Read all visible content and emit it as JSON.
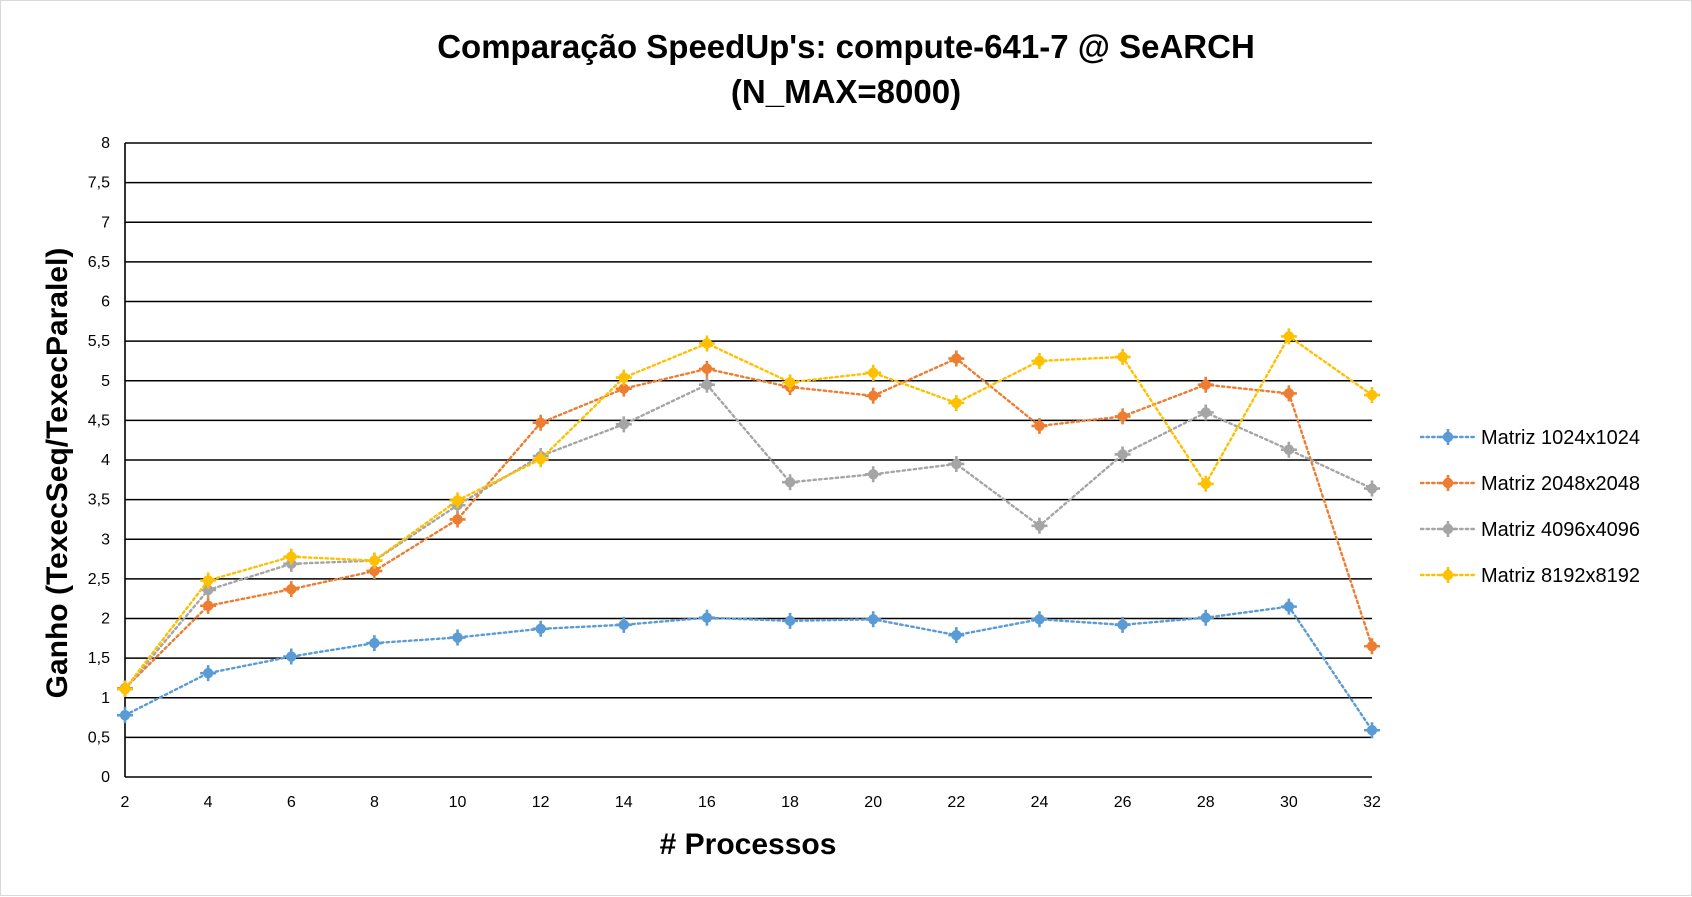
{
  "chart_data": {
    "type": "line",
    "title": "Comparação SpeedUp's: compute-641-7 @ SeARCH",
    "subtitle": "(N_MAX=8000)",
    "xlabel": "# Processos",
    "ylabel": "Ganho (TexecSeq/TexecParalel)",
    "x": [
      2,
      4,
      6,
      8,
      10,
      12,
      14,
      16,
      18,
      20,
      22,
      24,
      26,
      28,
      30,
      32
    ],
    "x_tick_labels": [
      "2",
      "4",
      "6",
      "8",
      "10",
      "12",
      "14",
      "16",
      "18",
      "20",
      "22",
      "24",
      "26",
      "28",
      "30",
      "32"
    ],
    "ylim": [
      0,
      8
    ],
    "y_ticks": [
      0,
      0.5,
      1,
      1.5,
      2,
      2.5,
      3,
      3.5,
      4,
      4.5,
      5,
      5.5,
      6,
      6.5,
      7,
      7.5,
      8
    ],
    "y_tick_labels": [
      "0",
      "0,5",
      "1",
      "1,5",
      "2",
      "2,5",
      "3",
      "3,5",
      "4",
      "4,5",
      "5",
      "5,5",
      "6",
      "6,5",
      "7",
      "7,5",
      "8"
    ],
    "grid": "horizontal",
    "legend_position": "right",
    "line_style": "dotted",
    "series": [
      {
        "name": "Matriz 1024x1024",
        "color": "#5B9BD5",
        "values": [
          0.78,
          1.31,
          1.52,
          1.69,
          1.76,
          1.87,
          1.92,
          2.01,
          1.97,
          1.99,
          1.79,
          1.99,
          1.92,
          2.01,
          2.15,
          0.59
        ]
      },
      {
        "name": "Matriz 2048x2048",
        "color": "#ED7D31",
        "values": [
          1.12,
          2.16,
          2.37,
          2.6,
          3.25,
          4.47,
          4.9,
          5.15,
          4.92,
          4.81,
          5.28,
          4.43,
          4.55,
          4.95,
          4.84,
          1.65
        ]
      },
      {
        "name": "Matriz 4096x4096",
        "color": "#A5A5A5",
        "values": [
          1.11,
          2.36,
          2.69,
          2.73,
          3.43,
          4.05,
          4.45,
          4.95,
          3.72,
          3.82,
          3.95,
          3.17,
          4.07,
          4.6,
          4.13,
          3.64
        ]
      },
      {
        "name": "Matriz 8192x8192",
        "color": "#FFC000",
        "values": [
          1.11,
          2.48,
          2.78,
          2.73,
          3.49,
          4.01,
          5.04,
          5.47,
          4.98,
          5.1,
          4.72,
          5.25,
          5.3,
          3.7,
          5.56,
          4.82
        ]
      }
    ]
  }
}
